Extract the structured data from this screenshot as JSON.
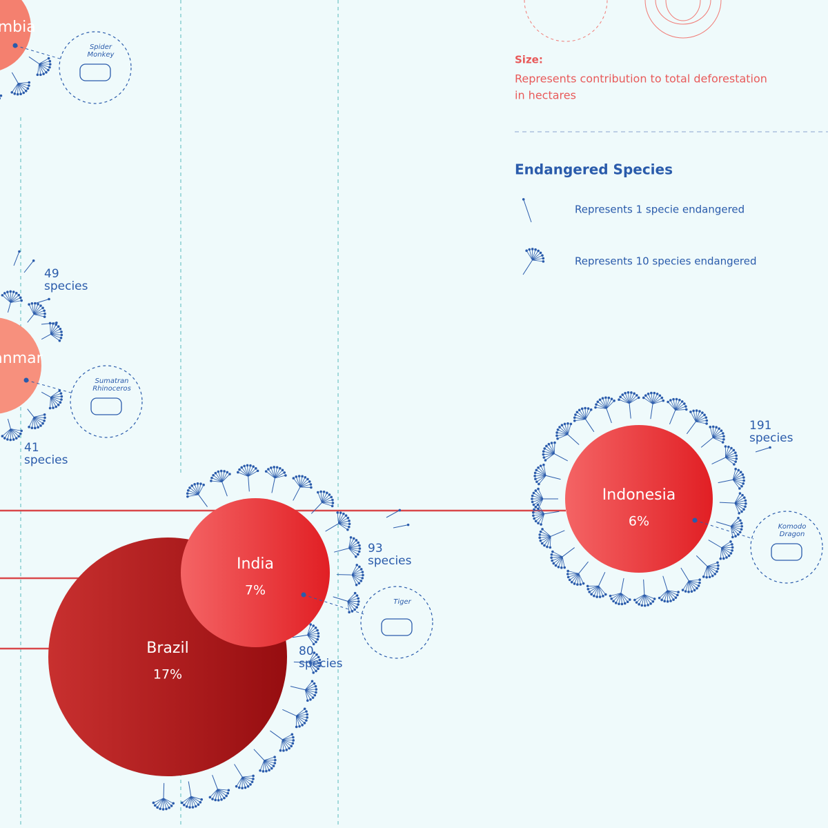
{
  "legend": {
    "size_title": "Size:",
    "size_text": [
      "Represents contribution to total deforestation",
      "in hectares"
    ],
    "species_title": "Endangered Species",
    "items": [
      "Represents 1 specie endangered",
      "Represents 10 species endangered"
    ]
  },
  "countries": [
    {
      "name": "Colombia",
      "animal": [
        "Spider",
        "Monkey"
      ]
    },
    {
      "name": "Myanmar",
      "animal": [
        "Sumatran",
        "Rhinoceros"
      ]
    },
    {
      "name": "Brazil",
      "share": "17%"
    },
    {
      "name": "India",
      "share": "7%",
      "animal": [
        "Tiger"
      ]
    },
    {
      "name": "Indonesia",
      "share": "6%",
      "animal": [
        "Komodo",
        "Dragon"
      ]
    }
  ],
  "species_labels": [
    {
      "count": "49",
      "unit": "species"
    },
    {
      "count": "41",
      "unit": "species"
    },
    {
      "count": "93",
      "unit": "species"
    },
    {
      "count": "80",
      "unit": "species"
    },
    {
      "count": "191",
      "unit": "species"
    }
  ]
}
